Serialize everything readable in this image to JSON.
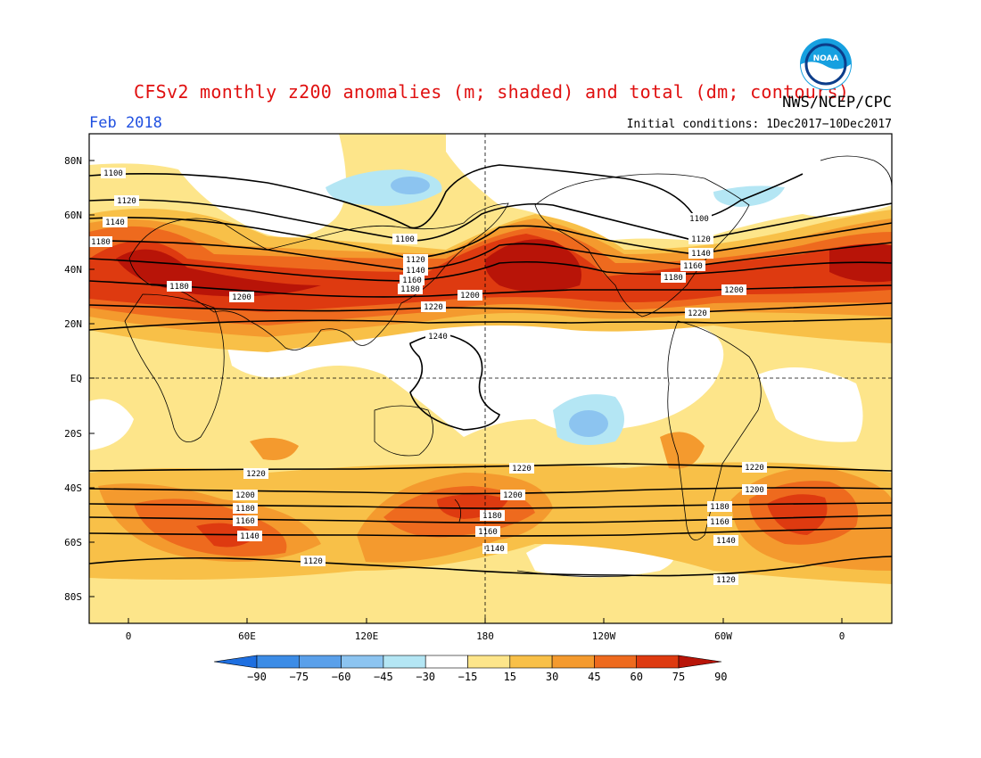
{
  "header": {
    "title": "CFSv2 monthly z200 anomalies (m; shaded) and total (dm; contours)",
    "agency": "NWS/NCEP/CPC",
    "month": "Feb 2018",
    "initial_conditions": "Initial conditions: 1Dec2017−10Dec2017",
    "logo_text": "NOAA"
  },
  "axes": {
    "lat_labels": [
      "80N",
      "60N",
      "40N",
      "20N",
      "EQ",
      "20S",
      "40S",
      "60S",
      "80S"
    ],
    "lon_labels": [
      "0",
      "60E",
      "120E",
      "180",
      "120W",
      "60W",
      "0"
    ]
  },
  "colorbar": {
    "ticks": [
      "−90",
      "−75",
      "−60",
      "−45",
      "−30",
      "−15",
      "15",
      "30",
      "45",
      "60",
      "75",
      "90"
    ],
    "colors": [
      "#1e6fe0",
      "#3c8ce6",
      "#5aa0ea",
      "#8cc4f0",
      "#b4e6f4",
      "#ffffff",
      "#fde58a",
      "#f8c048",
      "#f49a2e",
      "#ee6a1e",
      "#de3a10",
      "#b81408"
    ]
  },
  "contour_labels": {
    "nh": [
      "1100",
      "1120",
      "1140",
      "1160",
      "1180",
      "1200",
      "1220",
      "1240"
    ],
    "sh": [
      "1220",
      "1200",
      "1180",
      "1160",
      "1140",
      "1120"
    ]
  }
}
